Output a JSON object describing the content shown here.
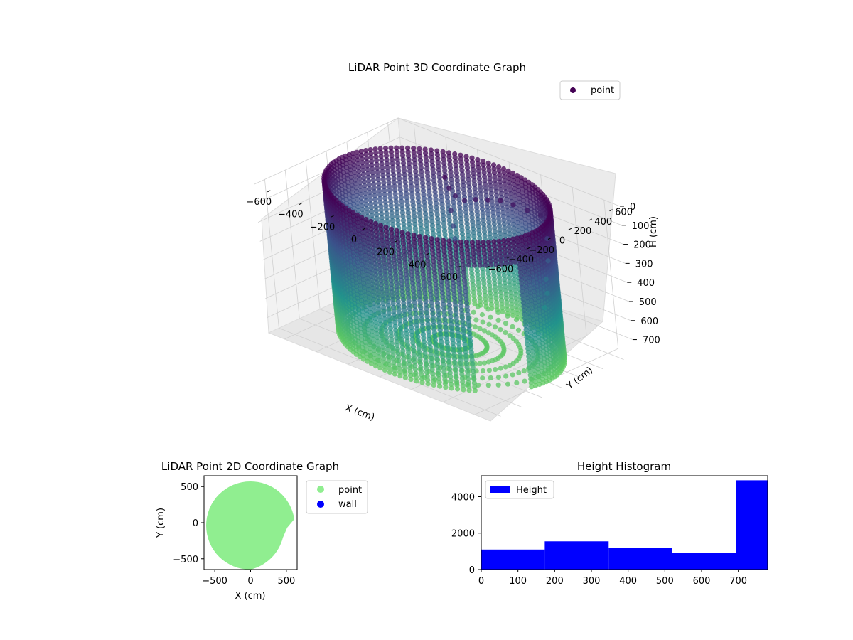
{
  "chart_data": [
    {
      "type": "scatter3d",
      "title": "LiDAR Point 3D Coordinate Graph",
      "xlabel": "X (cm)",
      "ylabel": "Y (cm)",
      "zlabel": "H (cm)",
      "legend": {
        "placement": "top-right",
        "entries": [
          "point"
        ]
      },
      "xlim": [
        -700,
        700
      ],
      "ylim": [
        -700,
        700
      ],
      "zlim": [
        0,
        780
      ],
      "z_inverted": true,
      "xticks": [
        -600,
        -400,
        -200,
        0,
        200,
        400,
        600
      ],
      "yticks": [
        -600,
        -400,
        -200,
        0,
        200,
        400,
        600
      ],
      "zticks": [
        0,
        100,
        200,
        300,
        400,
        500,
        600,
        700
      ],
      "colormap": "viridis (by height)",
      "shape": "cylindrical wall of points, radius ≈ 600 cm, height 0–780 cm, with a cluster of structural points near the top on the +Y side",
      "grid": true
    },
    {
      "type": "scatter",
      "title": "LiDAR Point 2D Coordinate Graph",
      "xlabel": "X (cm)",
      "ylabel": "Y (cm)",
      "xlim": [
        -650,
        650
      ],
      "ylim": [
        -650,
        650
      ],
      "xticks": [
        -500,
        0,
        500
      ],
      "yticks": [
        500,
        0,
        -500
      ],
      "legend": {
        "placement": "outside-right",
        "entries": [
          "point",
          "wall"
        ]
      },
      "series": [
        {
          "name": "point",
          "color": "#90ee90",
          "shape": "filled disc radius ≈ 600 cm"
        },
        {
          "name": "wall",
          "color": "#0000ff"
        }
      ]
    },
    {
      "type": "histogram",
      "title": "Height Histogram",
      "legend": {
        "placement": "top-left",
        "entries": [
          "Height"
        ]
      },
      "color": "#0000ff",
      "xlim": [
        0,
        780
      ],
      "ylim": [
        0,
        5150
      ],
      "xticks": [
        0,
        100,
        200,
        300,
        400,
        500,
        600,
        700
      ],
      "yticks": [
        0,
        2000,
        4000
      ],
      "bins": [
        {
          "start": 0,
          "end": 173,
          "count": 1100
        },
        {
          "start": 173,
          "end": 347,
          "count": 1550
        },
        {
          "start": 347,
          "end": 520,
          "count": 1200
        },
        {
          "start": 520,
          "end": 693,
          "count": 900
        },
        {
          "start": 693,
          "end": 780,
          "count": 4900
        }
      ]
    }
  ]
}
